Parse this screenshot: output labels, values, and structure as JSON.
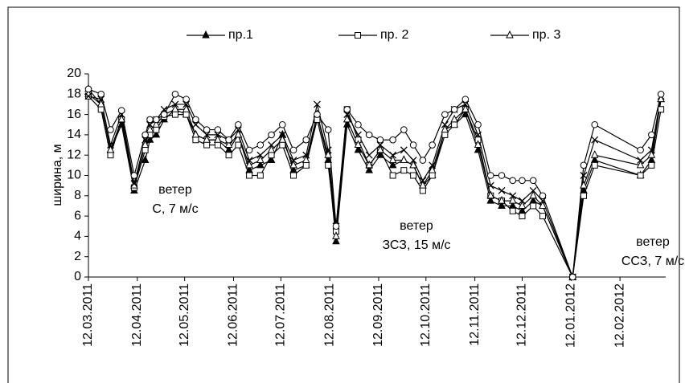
{
  "chart_data": {
    "type": "line",
    "ylabel": "ширина, м",
    "x": [
      "2011-03-12",
      "2011-03-20",
      "2011-03-26",
      "2011-04-02",
      "2011-04-10",
      "2011-04-17",
      "2011-04-20",
      "2011-04-24",
      "2011-04-29",
      "2011-05-06",
      "2011-05-13",
      "2011-05-19",
      "2011-05-26",
      "2011-06-02",
      "2011-06-09",
      "2011-06-15",
      "2011-06-22",
      "2011-06-29",
      "2011-07-06",
      "2011-07-13",
      "2011-07-20",
      "2011-07-28",
      "2011-08-04",
      "2011-08-11",
      "2011-08-16",
      "2011-08-23",
      "2011-08-30",
      "2011-09-06",
      "2011-09-13",
      "2011-09-21",
      "2011-09-28",
      "2011-10-04",
      "2011-10-10",
      "2011-10-16",
      "2011-10-24",
      "2011-10-30",
      "2011-11-06",
      "2011-11-14",
      "2011-11-22",
      "2011-11-29",
      "2011-12-06",
      "2011-12-12",
      "2011-12-19",
      "2011-12-25",
      "2012-01-13",
      "2012-01-20",
      "2012-01-27",
      "2012-02-25",
      "2012-03-03",
      "2012-03-09"
    ],
    "series": [
      {
        "name": "пр.1",
        "color": "#000000",
        "marker": "triangle-filled",
        "values": [
          18.5,
          17,
          12.5,
          15,
          8.5,
          11.5,
          13.5,
          14,
          15.5,
          16.5,
          16,
          14,
          13.5,
          13.5,
          12.5,
          14,
          10.5,
          11,
          11.5,
          14,
          10.5,
          11,
          16,
          11.5,
          3.5,
          15,
          12.5,
          10.5,
          12,
          11,
          11.5,
          11,
          9,
          10,
          14.5,
          15,
          16,
          12.5,
          7.5,
          7,
          7,
          6.5,
          7.5,
          7,
          0,
          8.5,
          11.5,
          10,
          11.5,
          17.5
        ]
      },
      {
        "name": "пр. 2",
        "color": "#000000",
        "marker": "square",
        "values": [
          17.8,
          16.5,
          12,
          15.5,
          8.8,
          12.5,
          14,
          14.5,
          15.8,
          16,
          16,
          13.5,
          13,
          13,
          12,
          13,
          10,
          10,
          12,
          13,
          10,
          11,
          15.5,
          11,
          4.5,
          16.5,
          13.5,
          11,
          12.5,
          10,
          10.5,
          10,
          8.5,
          10,
          14,
          15,
          16.5,
          13.5,
          8,
          7.5,
          6.5,
          6,
          7,
          6,
          0,
          8,
          11,
          10,
          11,
          16.5
        ]
      },
      {
        "name": "пр. 3",
        "color": "#000000",
        "marker": "triangle-open",
        "values": [
          18,
          17,
          12.5,
          15.5,
          9,
          13,
          14.5,
          15,
          16,
          16.5,
          16.5,
          14,
          13.5,
          13.5,
          13,
          14,
          11,
          11.5,
          12.5,
          13.5,
          11,
          11.5,
          16,
          12,
          4,
          15.5,
          13,
          11,
          12.5,
          11.5,
          11.5,
          11,
          9,
          10.5,
          14.5,
          15.5,
          16.5,
          13,
          8,
          7.5,
          7.5,
          7,
          8,
          7,
          0,
          9,
          12,
          11,
          12,
          17.5
        ]
      },
      {
        "color": "#000000",
        "marker": "cross",
        "values": [
          17.8,
          17.5,
          13,
          16,
          9.2,
          13.5,
          15,
          15.5,
          16.5,
          17,
          17,
          15,
          14,
          14,
          13.5,
          14.5,
          11.5,
          12,
          13,
          14,
          11.5,
          12,
          17,
          12.5,
          5,
          16,
          14,
          12,
          13,
          12,
          12.5,
          11.5,
          9.5,
          11,
          15,
          16.5,
          17,
          14,
          9,
          8.5,
          8,
          7.5,
          8.5,
          7.5,
          0,
          10,
          13.5,
          11.5,
          12.5,
          17.8
        ]
      },
      {
        "color": "#000000",
        "marker": "circle",
        "values": [
          18.5,
          18,
          14.5,
          16.4,
          10,
          14,
          15.5,
          15.5,
          16,
          18,
          17.5,
          15.5,
          14.5,
          14.5,
          13.5,
          15,
          12.5,
          13,
          14,
          15,
          12.5,
          13.5,
          16,
          14.5,
          5,
          16.5,
          15,
          14,
          13.5,
          13.5,
          14.5,
          13,
          11.5,
          13,
          16,
          16.5,
          17.5,
          15,
          10,
          10,
          9.5,
          9.5,
          9.5,
          8,
          0,
          11,
          15,
          12.5,
          14,
          18
        ]
      }
    ],
    "annotations": [
      [
        "ветер",
        "С, 7 м/с"
      ],
      [
        "ветер",
        "ЗСЗ, 15 м/с"
      ],
      [
        "ветер",
        "ССЗ, 7 м/с"
      ]
    ],
    "xlim": [
      "2011-03-12",
      "2012-03-12"
    ],
    "xticks": [
      {
        "value": "2011-03-12",
        "label": "12.03.2011"
      },
      {
        "value": "2011-04-12",
        "label": "12.04.2011"
      },
      {
        "value": "2011-05-12",
        "label": "12.05.2011"
      },
      {
        "value": "2011-06-12",
        "label": "12.06.2011"
      },
      {
        "value": "2011-07-12",
        "label": "12.07.2011"
      },
      {
        "value": "2011-08-12",
        "label": "12.08.2011"
      },
      {
        "value": "2011-09-12",
        "label": "12.09.2011"
      },
      {
        "value": "2011-10-12",
        "label": "12.10.2011"
      },
      {
        "value": "2011-11-12",
        "label": "12.11.2011"
      },
      {
        "value": "2011-12-12",
        "label": "12.12.2011"
      },
      {
        "value": "2012-01-12",
        "label": "12.01.2012"
      },
      {
        "value": "2012-02-12",
        "label": "12.02.2012"
      }
    ],
    "ylim": [
      0,
      20
    ],
    "yticks": [
      0,
      2,
      4,
      6,
      8,
      10,
      12,
      14,
      16,
      18,
      20
    ],
    "grid": false,
    "legend": "top"
  }
}
